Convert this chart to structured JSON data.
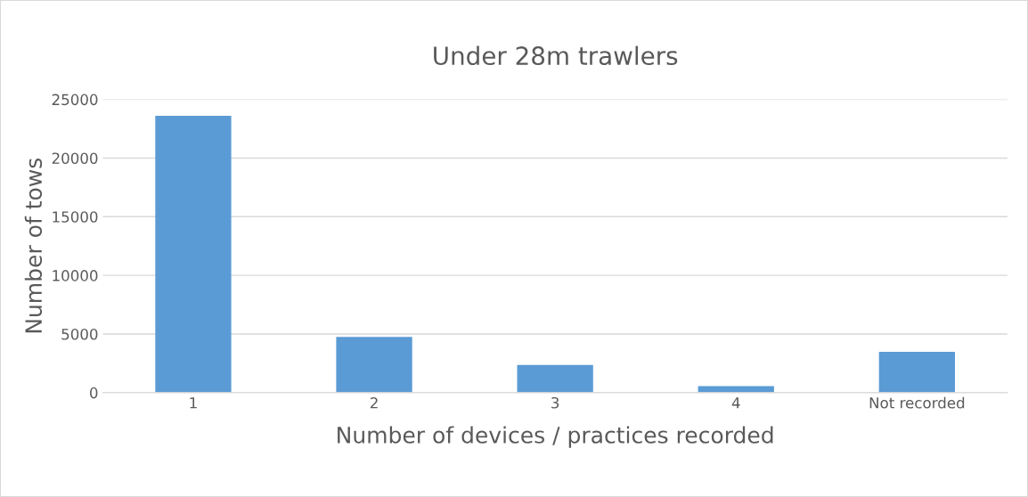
{
  "chart_data": {
    "type": "bar",
    "title": "Under 28m trawlers",
    "xlabel": "Number of devices / practices recorded",
    "ylabel": "Number of tows",
    "categories": [
      "1",
      "2",
      "3",
      "4",
      "Not recorded"
    ],
    "values": [
      23600,
      4750,
      2350,
      550,
      3480
    ],
    "color": "#5b9bd5",
    "ylim": [
      0,
      25000
    ],
    "yticks": [
      0,
      5000,
      10000,
      15000,
      20000,
      25000
    ],
    "grid": "y"
  }
}
